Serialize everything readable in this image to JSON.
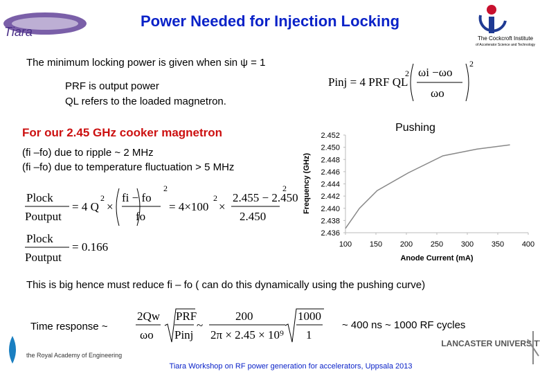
{
  "header": {
    "title": "Power Needed for Injection Locking",
    "logo_left": "Tiara",
    "logo_right": "The Cockcroft Institute",
    "logo_right_sub": "of Accelerator Science and Technology"
  },
  "body": {
    "line1": "The minimum locking power is given when sin ψ = 1",
    "prf": "PRF   is output power",
    "ql": "QL     refers to the loaded magnetron.",
    "highlight": "For our 2.45 GHz cooker magnetron",
    "ripple": "(fi –fo) due to ripple ~ 2 MHz",
    "temp": "(fi –fo) due to temperature fluctuation > 5 MHz",
    "conclusion": "This is big hence must reduce fi – fo  ( can do this dynamically using the pushing curve)",
    "time_label": "Time response ~",
    "time_result": "~ 400 ns ~ 1000 RF cycles"
  },
  "equations": {
    "inj": {
      "lhs": "Pinj = 4 PRF QL",
      "sq": "2",
      "num": "ωi −ωo",
      "den": "ωo",
      "exp": "2"
    },
    "lock": {
      "num": "Plock",
      "den": "Poutput",
      "mid": "= 4 Q",
      "mid_sq": "2",
      "times": "×",
      "fnum": "fi − fo",
      "fden": "fo",
      "fexp": "2",
      "eq2": "= 4×100",
      "eq2_sq": "2",
      "times2": "×",
      "vnum": "2.455 − 2.450",
      "vden": "2.450",
      "vexp": "2"
    },
    "ratio": {
      "num": "Plock",
      "den": "Poutput",
      "rhs": "= 0.166"
    },
    "time": {
      "num": "2Qw",
      "den": "ωo",
      "snum": "PRF",
      "sden": "Pinj",
      "sim": "~",
      "nnum": "200",
      "nden": "2π × 2.45 × 10⁹",
      "rnum": "1000",
      "rden": "1"
    }
  },
  "footer": {
    "text": "Tiara Workshop on RF power generation for accelerators, Uppsala  2013",
    "logo_left": "the Royal Academy of Engineering",
    "logo_right": "LANCASTER UNIVERSITY"
  },
  "chart_data": {
    "type": "line",
    "title": "Pushing",
    "x_label": "Anode Current (mA)",
    "y_label": "Frequency (GHz)",
    "x": [
      100,
      123,
      152,
      203,
      260,
      316,
      370
    ],
    "series": [
      {
        "name": "Pushing",
        "color": "#888888",
        "values": [
          2.4367,
          2.44,
          2.4429,
          2.4458,
          2.4486,
          2.4497,
          2.4504
        ]
      }
    ],
    "xlim": [
      100,
      400
    ],
    "xticks": [
      100,
      150,
      200,
      250,
      300,
      350,
      400
    ],
    "ylim": [
      2.436,
      2.452
    ],
    "yticks": [
      2.436,
      2.438,
      {
        "value": 2.44,
        "label": "2.440"
      },
      2.442,
      2.444,
      2.446,
      2.448,
      {
        "value": 2.45,
        "label": "2.450"
      },
      2.452
    ]
  }
}
